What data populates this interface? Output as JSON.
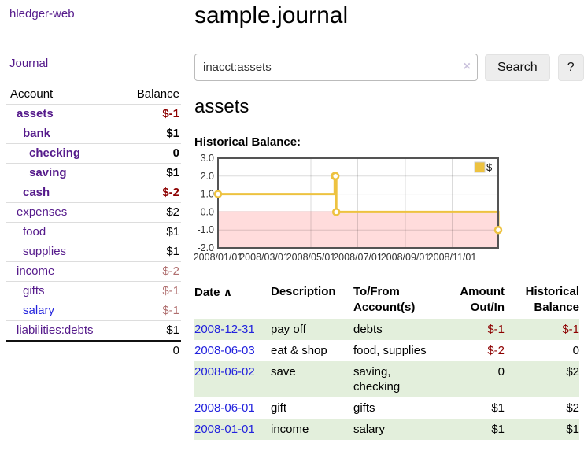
{
  "app": {
    "brand": "hledger-web",
    "nav_journal": "Journal"
  },
  "page": {
    "title": "sample.journal"
  },
  "search": {
    "value": "inacct:assets",
    "clear_label": "×",
    "submit_label": "Search",
    "help_label": "?"
  },
  "account_view": {
    "heading": "assets",
    "chart_title": "Historical Balance:"
  },
  "colors": {
    "link_purple": "#551a8b",
    "link_blue": "#2222dd",
    "negative_strong": "#8d0000",
    "negative_soft": "#b06f6f",
    "row_green": "#e3efdc"
  },
  "sidebar_accounts": {
    "col_account": "Account",
    "col_balance": "Balance",
    "rows": [
      {
        "account": "assets",
        "balance": "$-1",
        "depth": 1,
        "selected": true,
        "unvisited": false
      },
      {
        "account": "bank",
        "balance": "$1",
        "depth": 2,
        "selected": true,
        "unvisited": false
      },
      {
        "account": "checking",
        "balance": "0",
        "depth": 3,
        "selected": true,
        "unvisited": false
      },
      {
        "account": "saving",
        "balance": "$1",
        "depth": 3,
        "selected": true,
        "unvisited": false
      },
      {
        "account": "cash",
        "balance": "$-2",
        "depth": 2,
        "selected": true,
        "unvisited": false
      },
      {
        "account": "expenses",
        "balance": "$2",
        "depth": 1,
        "selected": false,
        "unvisited": false
      },
      {
        "account": "food",
        "balance": "$1",
        "depth": 2,
        "selected": false,
        "unvisited": false
      },
      {
        "account": "supplies",
        "balance": "$1",
        "depth": 2,
        "selected": false,
        "unvisited": false
      },
      {
        "account": "income",
        "balance": "$-2",
        "depth": 1,
        "selected": false,
        "unvisited": false
      },
      {
        "account": "gifts",
        "balance": "$-1",
        "depth": 2,
        "selected": false,
        "unvisited": false
      },
      {
        "account": "salary",
        "balance": "$-1",
        "depth": 2,
        "selected": false,
        "unvisited": true
      },
      {
        "account": "liabilities:debts",
        "balance": "$1",
        "depth": 1,
        "selected": false,
        "unvisited": false
      }
    ],
    "total": "0"
  },
  "chart_data": {
    "type": "line",
    "style": "steps-with-markers",
    "title": "Historical Balance:",
    "series": [
      {
        "name": "$",
        "color": "#edc240",
        "points": [
          [
            "2008-01-01",
            1
          ],
          [
            "2008-06-01",
            2
          ],
          [
            "2008-06-02",
            2
          ],
          [
            "2008-06-03",
            0
          ],
          [
            "2008-12-31",
            -1
          ]
        ]
      }
    ],
    "xlim": [
      "2008-01-01",
      "2008-12-31"
    ],
    "ylim": [
      -2,
      3
    ],
    "x_ticks": [
      "2008/01/01",
      "2008/03/01",
      "2008/05/01",
      "2008/07/01",
      "2008/09/01",
      "2008/11/01"
    ],
    "y_ticks": [
      "3.0",
      "2.0",
      "1.0",
      "0.0",
      "-1.0",
      "-2.0"
    ],
    "grid": true,
    "legend_position": "top-right",
    "negative_region_color": "#ffdcdc",
    "zero_line_color": "#aa0000",
    "border_color": "#545454"
  },
  "register": {
    "columns": {
      "date": "Date",
      "sort_icon": "∧",
      "description": "Description",
      "accounts": "To/From Account(s)",
      "amount": "Amount Out/In",
      "balance": "Historical Balance"
    },
    "rows": [
      {
        "date": "2008-12-31",
        "description": "pay off",
        "accounts": "debts",
        "amount": "$-1",
        "balance": "$-1"
      },
      {
        "date": "2008-06-03",
        "description": "eat & shop",
        "accounts": "food, supplies",
        "amount": "$-2",
        "balance": "0"
      },
      {
        "date": "2008-06-02",
        "description": "save",
        "accounts": "saving, checking",
        "amount": "0",
        "balance": "$2"
      },
      {
        "date": "2008-06-01",
        "description": "gift",
        "accounts": "gifts",
        "amount": "$1",
        "balance": "$2"
      },
      {
        "date": "2008-01-01",
        "description": "income",
        "accounts": "salary",
        "amount": "$1",
        "balance": "$1"
      }
    ]
  }
}
